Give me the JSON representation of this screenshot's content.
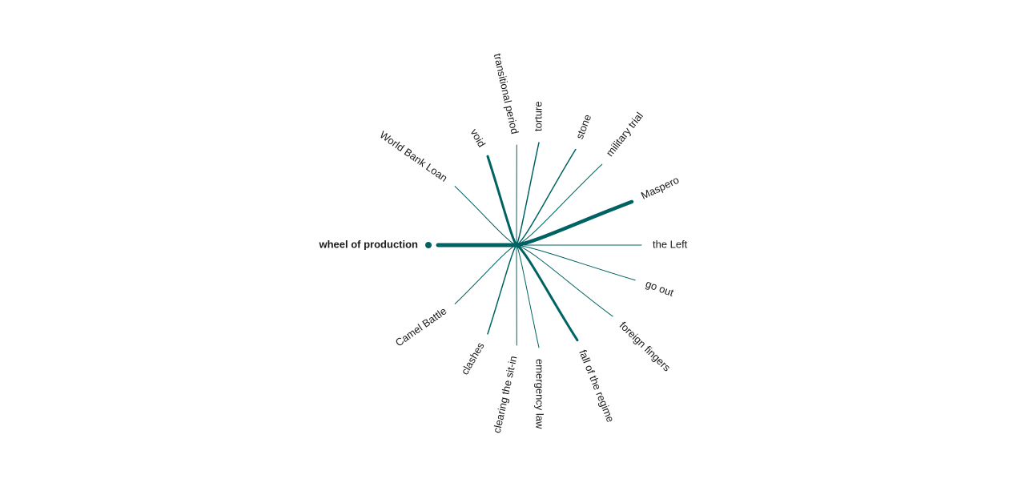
{
  "diagram": {
    "center_term": "wheel of production",
    "color": "#006262",
    "terms": [
      {
        "label": "void",
        "weight": 3
      },
      {
        "label": "transitional period",
        "weight": 1
      },
      {
        "label": "torture",
        "weight": 1.5
      },
      {
        "label": "stone",
        "weight": 1.5
      },
      {
        "label": "military trial",
        "weight": 1
      },
      {
        "label": "Maspero",
        "weight": 4.5
      },
      {
        "label": "the Left",
        "weight": 1
      },
      {
        "label": "go out",
        "weight": 1
      },
      {
        "label": "foreign fingers",
        "weight": 1
      },
      {
        "label": "fall of the regime",
        "weight": 3
      },
      {
        "label": "emergency law",
        "weight": 1
      },
      {
        "label": "clearing the sit-in",
        "weight": 1
      },
      {
        "label": "clashes",
        "weight": 1.5
      },
      {
        "label": "Camel Battle",
        "weight": 1
      },
      {
        "label": "World Bank Loan",
        "weight": 1
      }
    ]
  }
}
